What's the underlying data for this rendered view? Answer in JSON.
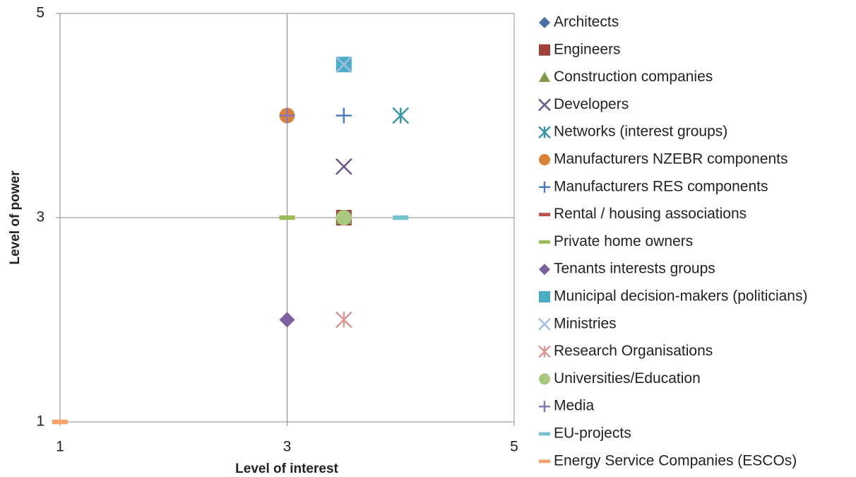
{
  "chart_data": {
    "type": "scatter",
    "xlabel": "Level of interest",
    "ylabel": "Level of power",
    "xlim": [
      1,
      5
    ],
    "xticks": [
      1,
      3,
      5
    ],
    "ylim": [
      1,
      5
    ],
    "yticks": [
      1,
      3,
      5
    ],
    "grid": true,
    "legend": "right",
    "series": [
      {
        "name": "Architects",
        "color": "#4a6fa5",
        "marker": "diamond",
        "x": [
          3.5
        ],
        "values": [
          3
        ]
      },
      {
        "name": "Engineers",
        "color": "#a0403c",
        "marker": "square",
        "x": [
          3.5
        ],
        "values": [
          3
        ]
      },
      {
        "name": "Construction companies",
        "color": "#7f9a48",
        "marker": "triangle",
        "x": [
          3.5
        ],
        "values": [
          3
        ]
      },
      {
        "name": "Developers",
        "color": "#6a548c",
        "marker": "x",
        "x": [
          3.5
        ],
        "values": [
          3.5
        ]
      },
      {
        "name": "Networks (interest groups)",
        "color": "#3d95a8",
        "marker": "asterisk",
        "x": [
          4
        ],
        "values": [
          4
        ]
      },
      {
        "name": "Manufacturers NZEBR components",
        "color": "#d8823a",
        "marker": "circle",
        "x": [
          3
        ],
        "values": [
          4
        ]
      },
      {
        "name": "Manufacturers RES components",
        "color": "#4a7cc0",
        "marker": "plus",
        "x": [
          3.5
        ],
        "values": [
          4
        ]
      },
      {
        "name": "Rental / housing associations",
        "color": "#c0504d",
        "marker": "dash",
        "x": [
          3.5
        ],
        "values": [
          3
        ]
      },
      {
        "name": "Private home owners",
        "color": "#9bbb59",
        "marker": "dash",
        "x": [
          3
        ],
        "values": [
          3
        ]
      },
      {
        "name": "Tenants interests groups",
        "color": "#7e5f9e",
        "marker": "diamond",
        "x": [
          3
        ],
        "values": [
          2
        ]
      },
      {
        "name": "Municipal decision-makers (politicians)",
        "color": "#4bacc6",
        "marker": "square",
        "x": [
          3.5
        ],
        "values": [
          4.5
        ]
      },
      {
        "name": "Ministries",
        "color": "#a6bce0",
        "marker": "x",
        "x": [
          3.5
        ],
        "values": [
          4.5
        ]
      },
      {
        "name": "Research Organisations",
        "color": "#d99694",
        "marker": "asterisk",
        "x": [
          3.5
        ],
        "values": [
          2
        ]
      },
      {
        "name": "Universities/Education",
        "color": "#a9c97f",
        "marker": "circle",
        "x": [
          3.5
        ],
        "values": [
          3
        ]
      },
      {
        "name": "Media",
        "color": "#8878b8",
        "marker": "plus",
        "x": [
          3
        ],
        "values": [
          4
        ]
      },
      {
        "name": "EU-projects",
        "color": "#77c0d0",
        "marker": "dash",
        "x": [
          4
        ],
        "values": [
          3
        ]
      },
      {
        "name": "Energy Service Companies (ESCOs)",
        "color": "#f5a36b",
        "marker": "dash",
        "x": [
          1
        ],
        "values": [
          1
        ]
      }
    ]
  }
}
